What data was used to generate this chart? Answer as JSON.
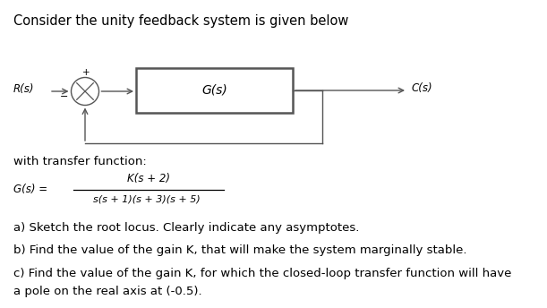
{
  "title_line": "Consider the unity feedback system is given below",
  "transfer_function_label": "with transfer function:",
  "question_a": "a) Sketch the root locus. Clearly indicate any asymptotes.",
  "question_b": "b) Find the value of the gain K, that will make the system marginally stable.",
  "question_c1": "c) Find the value of the gain K, for which the closed-loop transfer function will have",
  "question_c2": "a pole on the real axis at (-0.5).",
  "block_label": "G(s)",
  "Rs_label": "R(s)",
  "Cs_label": "C(s)",
  "plus_label": "+",
  "minus_label": "−",
  "bg_color": "#ffffff",
  "text_color": "#000000",
  "diagram_color": "#555555",
  "font_size_title": 10.5,
  "font_size_body": 9.5,
  "font_size_small": 8.5,
  "font_size_diagram": 9
}
